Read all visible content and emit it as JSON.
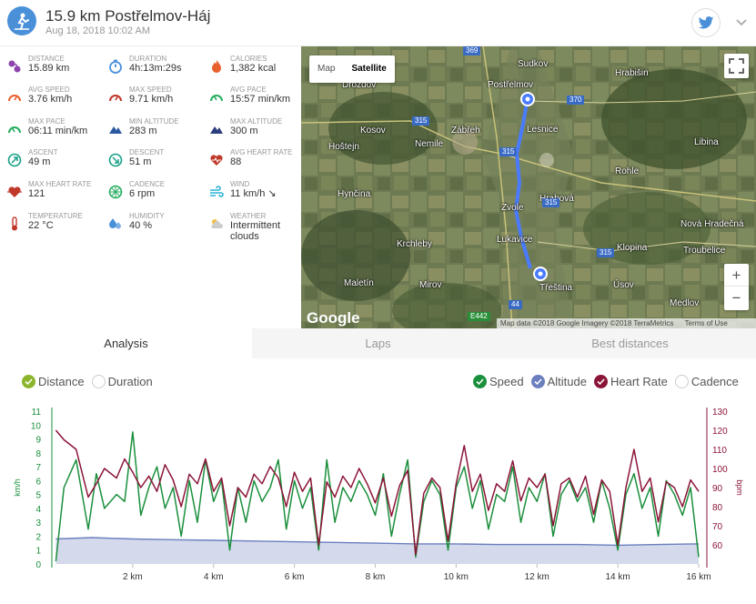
{
  "header": {
    "title": "15.9 km Postřelmov-Háj",
    "date": "Aug 18, 2018 10:02 AM"
  },
  "stats": [
    {
      "label": "DISTANCE",
      "value": "15.89 km",
      "icon": "route-icon",
      "color": "#8e44ad"
    },
    {
      "label": "DURATION",
      "value": "4h:13m:29s",
      "icon": "stopwatch-icon",
      "color": "#4a90d9"
    },
    {
      "label": "CALORIES",
      "value": "1,382 kcal",
      "icon": "fire-icon",
      "color": "#e8602c"
    },
    {
      "label": "AVG SPEED",
      "value": "3.76 km/h",
      "icon": "speedometer-icon",
      "color": "#e8602c"
    },
    {
      "label": "MAX SPEED",
      "value": "9.71 km/h",
      "icon": "speedometer-icon",
      "color": "#c0392b"
    },
    {
      "label": "AVG PACE",
      "value": "15:57 min/km",
      "icon": "pace-icon",
      "color": "#27ae60"
    },
    {
      "label": "MAX PACE",
      "value": "06:11 min/km",
      "icon": "pace-icon",
      "color": "#27ae60"
    },
    {
      "label": "MIN ALTITUDE",
      "value": "283 m",
      "icon": "mountain-icon",
      "color": "#2c5aa0"
    },
    {
      "label": "MAX ALTITUDE",
      "value": "300 m",
      "icon": "mountain-icon",
      "color": "#2c3e80"
    },
    {
      "label": "ASCENT",
      "value": "49 m",
      "icon": "ascent-icon",
      "color": "#16a085"
    },
    {
      "label": "DESCENT",
      "value": "51 m",
      "icon": "descent-icon",
      "color": "#16a085"
    },
    {
      "label": "AVG HEART RATE",
      "value": "88",
      "icon": "heart-icon",
      "color": "#c0392b"
    },
    {
      "label": "MAX HEART RATE",
      "value": "121",
      "icon": "heart-pulse-icon",
      "color": "#c0392b"
    },
    {
      "label": "CADENCE",
      "value": "6 rpm",
      "icon": "cadence-icon",
      "color": "#27ae60"
    },
    {
      "label": "WIND",
      "value": "11 km/h ↘",
      "icon": "wind-icon",
      "color": "#2bb3d9"
    },
    {
      "label": "TEMPERATURE",
      "value": "22 °C",
      "icon": "thermometer-icon",
      "color": "#c0392b"
    },
    {
      "label": "HUMIDITY",
      "value": "40 %",
      "icon": "humidity-icon",
      "color": "#4a90d9"
    },
    {
      "label": "WEATHER",
      "value": "Intermittent clouds",
      "icon": "weather-icon",
      "color": "#f0c040"
    }
  ],
  "map": {
    "btn_map": "Map",
    "btn_satellite": "Satellite",
    "logo": "Google",
    "attribution": "Map data ©2018 Google Imagery ©2018 TerraMetrics",
    "terms": "Terms of Use",
    "zoom_in": "+",
    "zoom_out": "−",
    "places": [
      "Sudkov",
      "Hrabišin",
      "Drozdov",
      "Postřelmov",
      "Kosov",
      "Zábřeh",
      "Lesnice",
      "Hoštejn",
      "Nemile",
      "Libina",
      "Rohle",
      "Hynčina",
      "Hrabová",
      "Zvole",
      "Nová Hradečná",
      "Krchleby",
      "Lukavice",
      "Klopina",
      "Troubelice",
      "Maletín",
      "Mirov",
      "Třeština",
      "Úsov",
      "Medlov"
    ],
    "roads": [
      "369",
      "370",
      "315",
      "315",
      "315",
      "315",
      "44",
      "E442"
    ]
  },
  "tabs": [
    "Analysis",
    "Laps",
    "Best distances"
  ],
  "legend": {
    "distance": "Distance",
    "duration": "Duration",
    "speed": "Speed",
    "altitude": "Altitude",
    "heart_rate": "Heart Rate",
    "cadence": "Cadence"
  },
  "colors": {
    "speed": "#1a8f3c",
    "altitude": "#6b7fbf",
    "heart_rate": "#8b1538",
    "accent": "#4a90d9"
  },
  "chart_data": {
    "type": "line",
    "xlabel": "",
    "x_ticks": [
      "2 km",
      "4 km",
      "6 km",
      "8 km",
      "10 km",
      "12 km",
      "14 km",
      "16 km"
    ],
    "y_left": {
      "label": "km/h",
      "ticks": [
        "0",
        "1",
        "2",
        "3",
        "4",
        "5",
        "6",
        "7",
        "8",
        "9",
        "10",
        "11"
      ],
      "ylim": [
        0,
        11
      ]
    },
    "y_right": {
      "label": "bpm",
      "ticks": [
        "60",
        "70",
        "80",
        "90",
        "100",
        "110",
        "120",
        "130"
      ],
      "ylim": [
        50,
        130
      ]
    },
    "xlim": [
      0,
      16
    ],
    "series": [
      {
        "name": "Speed",
        "axis": "left",
        "x": [
          0.1,
          0.3,
          0.6,
          0.9,
          1.1,
          1.3,
          1.6,
          1.8,
          2.0,
          2.2,
          2.4,
          2.6,
          2.8,
          3.0,
          3.2,
          3.4,
          3.6,
          3.8,
          4.0,
          4.2,
          4.4,
          4.6,
          4.8,
          5.0,
          5.2,
          5.4,
          5.6,
          5.8,
          6.0,
          6.2,
          6.4,
          6.6,
          6.8,
          7.0,
          7.2,
          7.4,
          7.6,
          7.8,
          8.0,
          8.2,
          8.4,
          8.6,
          8.8,
          9.0,
          9.2,
          9.4,
          9.6,
          9.8,
          10.0,
          10.2,
          10.4,
          10.6,
          10.8,
          11.0,
          11.2,
          11.4,
          11.6,
          11.8,
          12.0,
          12.2,
          12.4,
          12.6,
          12.8,
          13.0,
          13.2,
          13.4,
          13.6,
          13.8,
          14.0,
          14.2,
          14.4,
          14.6,
          14.8,
          15.0,
          15.2,
          15.4,
          15.6,
          15.8,
          16.0
        ],
        "values": [
          0.2,
          5.5,
          7.5,
          2.5,
          6.5,
          4.0,
          5.0,
          4.5,
          9.5,
          3.5,
          5.5,
          7.0,
          4.0,
          5.5,
          2.0,
          6.0,
          3.0,
          7.5,
          4.5,
          6.0,
          1.0,
          5.5,
          3.0,
          6.0,
          4.5,
          5.5,
          7.5,
          2.5,
          6.0,
          4.0,
          5.5,
          1.0,
          7.5,
          3.0,
          5.5,
          4.5,
          6.0,
          5.0,
          3.5,
          6.5,
          2.0,
          5.0,
          7.5,
          0.5,
          4.5,
          6.0,
          5.0,
          1.0,
          5.5,
          7.0,
          4.0,
          6.0,
          2.5,
          5.0,
          4.5,
          7.0,
          3.0,
          5.5,
          4.5,
          6.5,
          2.0,
          5.0,
          6.0,
          4.5,
          5.5,
          3.0,
          6.0,
          4.0,
          1.0,
          5.0,
          6.5,
          4.0,
          5.5,
          2.0,
          6.0,
          5.0,
          3.5,
          5.5,
          0.5
        ]
      },
      {
        "name": "Heart Rate",
        "axis": "right",
        "x": [
          0.1,
          0.3,
          0.6,
          0.9,
          1.1,
          1.3,
          1.6,
          1.8,
          2.0,
          2.2,
          2.4,
          2.6,
          2.8,
          3.0,
          3.2,
          3.4,
          3.6,
          3.8,
          4.0,
          4.2,
          4.4,
          4.6,
          4.8,
          5.0,
          5.2,
          5.4,
          5.6,
          5.8,
          6.0,
          6.2,
          6.4,
          6.6,
          6.8,
          7.0,
          7.2,
          7.4,
          7.6,
          7.8,
          8.0,
          8.2,
          8.4,
          8.6,
          8.8,
          9.0,
          9.2,
          9.4,
          9.6,
          9.8,
          10.0,
          10.2,
          10.4,
          10.6,
          10.8,
          11.0,
          11.2,
          11.4,
          11.6,
          11.8,
          12.0,
          12.2,
          12.4,
          12.6,
          12.8,
          13.0,
          13.2,
          13.4,
          13.6,
          13.8,
          14.0,
          14.2,
          14.4,
          14.6,
          14.8,
          15.0,
          15.2,
          15.4,
          15.6,
          15.8,
          16.0
        ],
        "values": [
          120,
          115,
          110,
          85,
          92,
          100,
          95,
          105,
          98,
          90,
          96,
          88,
          102,
          94,
          80,
          97,
          92,
          105,
          88,
          95,
          70,
          90,
          85,
          97,
          92,
          101,
          95,
          80,
          98,
          88,
          95,
          60,
          93,
          85,
          96,
          90,
          100,
          92,
          82,
          95,
          75,
          91,
          99,
          55,
          87,
          95,
          90,
          62,
          92,
          112,
          88,
          97,
          78,
          92,
          88,
          104,
          83,
          95,
          90,
          97,
          70,
          92,
          95,
          85,
          96,
          76,
          94,
          88,
          60,
          90,
          110,
          88,
          95,
          72,
          93,
          90,
          80,
          94,
          88
        ]
      },
      {
        "name": "Altitude",
        "axis": "left",
        "x": [
          0.1,
          1,
          2,
          3,
          4,
          5,
          6,
          7,
          8,
          9,
          10,
          11,
          12,
          13,
          14,
          15,
          16
        ],
        "values": [
          1.8,
          1.9,
          1.8,
          1.75,
          1.7,
          1.65,
          1.6,
          1.55,
          1.5,
          1.45,
          1.45,
          1.4,
          1.4,
          1.4,
          1.35,
          1.4,
          1.45
        ]
      }
    ]
  }
}
